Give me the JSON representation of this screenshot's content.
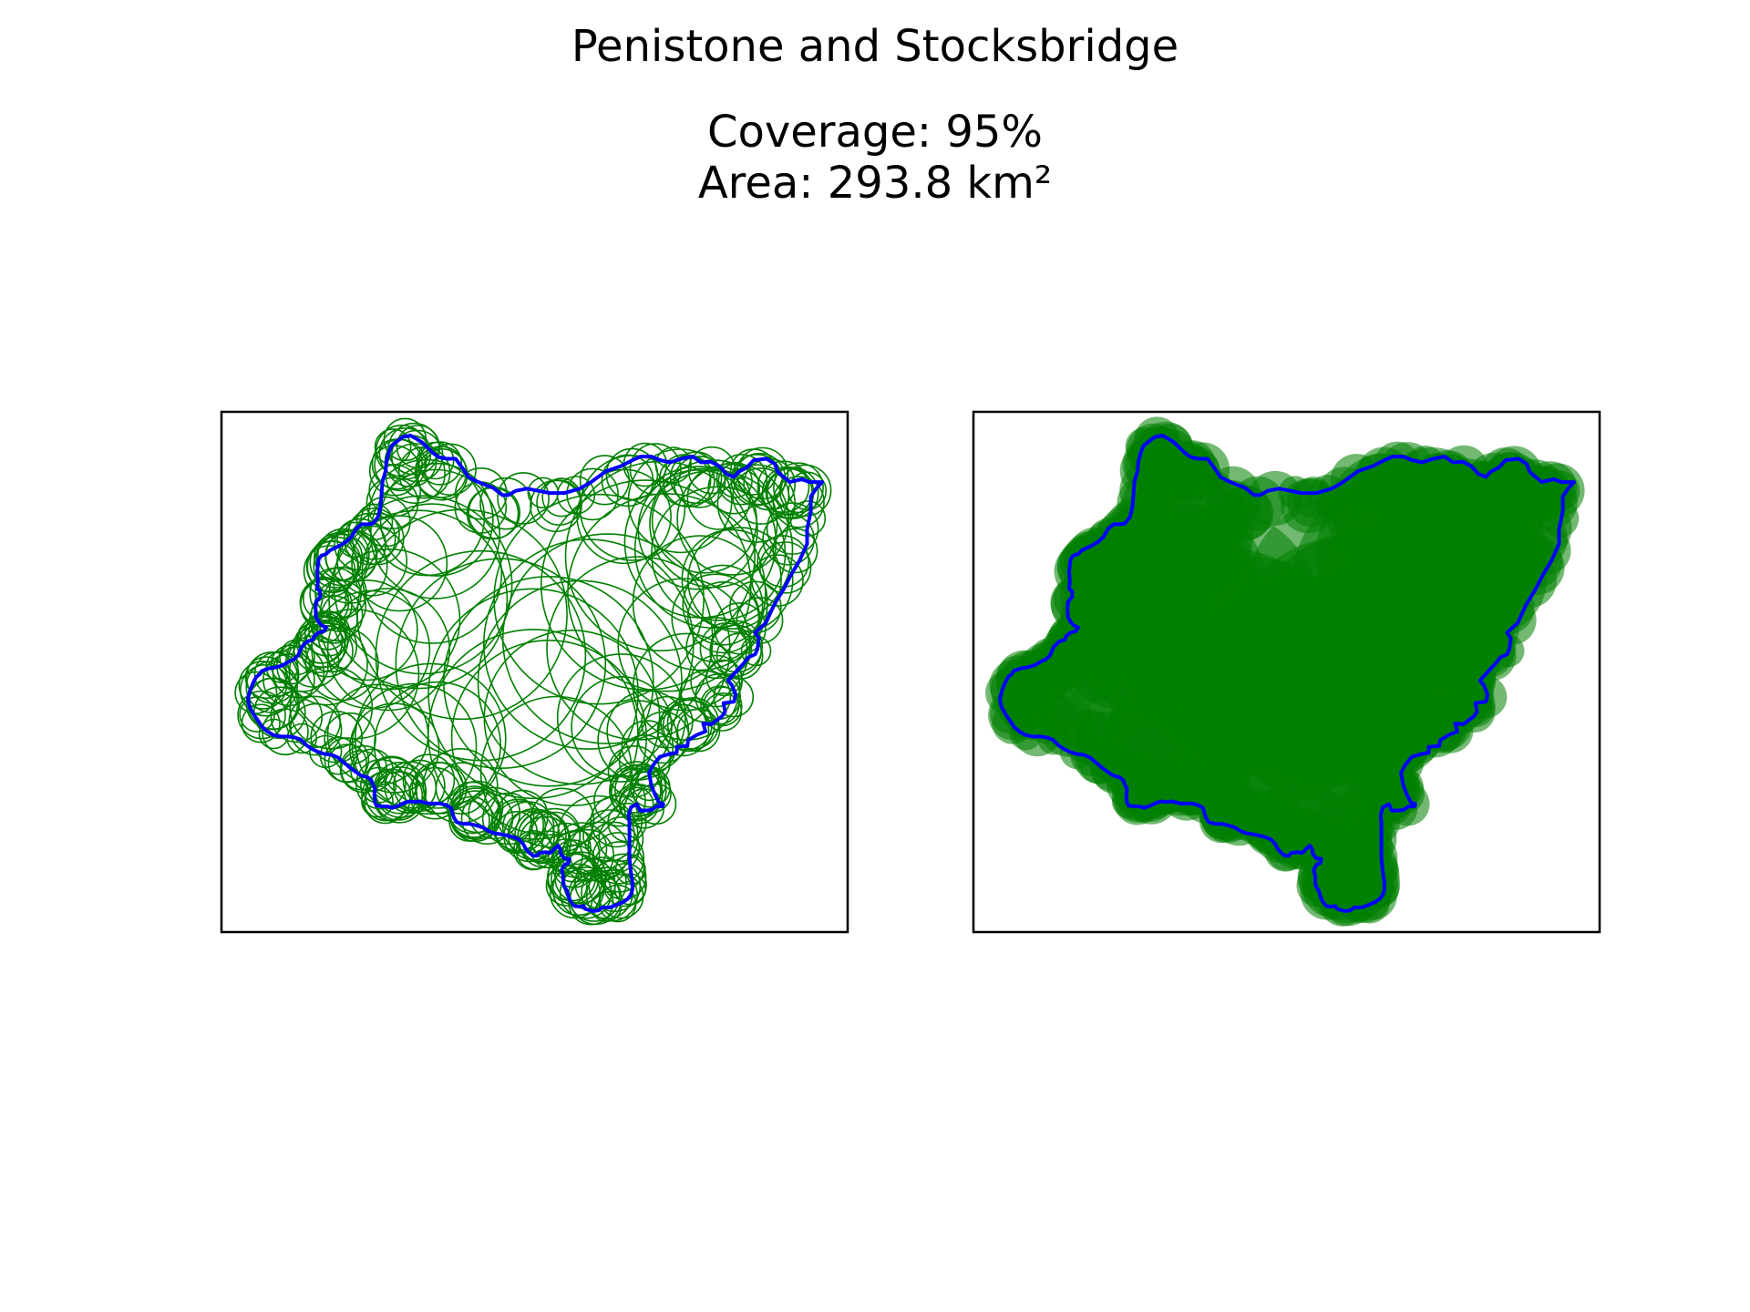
{
  "figure": {
    "title": "Penistone and Stocksbridge",
    "coverage_label": "Coverage: 95%",
    "area_label": "Area: 293.8 km²"
  },
  "stats": {
    "coverage_percent": 95,
    "area_km2": 293.8
  },
  "colors": {
    "boundary": "#0000ff",
    "circle": "#008000",
    "frame": "#000000",
    "background": "#ffffff"
  },
  "panels": [
    {
      "id": "circles-panel",
      "style": "outline"
    },
    {
      "id": "filled-panel",
      "style": "filled"
    }
  ]
}
